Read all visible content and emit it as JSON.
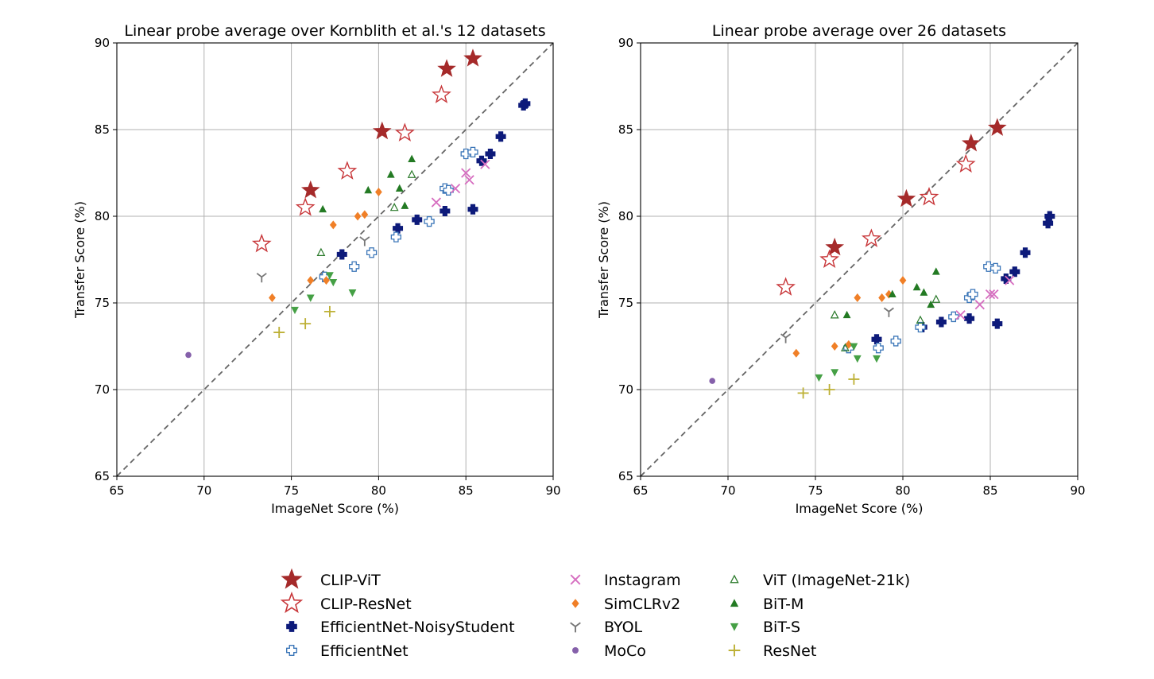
{
  "chart_data": [
    {
      "type": "scatter",
      "title": "Linear probe average over Kornblith et al.'s 12 datasets",
      "xlabel": "ImageNet Score (%)",
      "ylabel": "Transfer Score (%)",
      "xlim": [
        65,
        90
      ],
      "ylim": [
        65,
        90
      ],
      "xticks": [
        65,
        70,
        75,
        80,
        85,
        90
      ],
      "yticks": [
        65,
        70,
        75,
        80,
        85,
        90
      ],
      "grid": true,
      "diagonal": "dashed y=x",
      "series": [
        {
          "name": "CLIP-ViT",
          "marker": "star-filled",
          "color": "#a52a2a",
          "points": [
            [
              76.1,
              81.5
            ],
            [
              80.2,
              84.9
            ],
            [
              83.9,
              88.5
            ],
            [
              85.4,
              89.1
            ]
          ]
        },
        {
          "name": "CLIP-ResNet",
          "marker": "star-open",
          "color": "#c8373a",
          "points": [
            [
              73.3,
              78.4
            ],
            [
              75.8,
              80.5
            ],
            [
              78.2,
              82.6
            ],
            [
              81.5,
              84.8
            ],
            [
              83.6,
              87.0
            ]
          ]
        },
        {
          "name": "EfficientNet-NoisyStudent",
          "marker": "plus-filled",
          "color": "#0d1a7a",
          "points": [
            [
              77.9,
              77.8
            ],
            [
              81.1,
              79.3
            ],
            [
              82.2,
              79.8
            ],
            [
              83.8,
              80.3
            ],
            [
              85.4,
              80.4
            ],
            [
              85.9,
              83.2
            ],
            [
              86.4,
              83.6
            ],
            [
              87.0,
              84.6
            ],
            [
              88.3,
              86.4
            ],
            [
              88.4,
              86.5
            ]
          ]
        },
        {
          "name": "EfficientNet",
          "marker": "plus-open",
          "color": "#3b76b8",
          "points": [
            [
              76.9,
              76.5
            ],
            [
              78.6,
              77.1
            ],
            [
              79.6,
              77.9
            ],
            [
              81.0,
              78.8
            ],
            [
              82.9,
              79.7
            ],
            [
              83.8,
              81.6
            ],
            [
              84.0,
              81.5
            ],
            [
              85.0,
              83.6
            ],
            [
              85.4,
              83.7
            ]
          ]
        },
        {
          "name": "Instagram",
          "marker": "x",
          "color": "#d66ec0",
          "points": [
            [
              83.3,
              80.8
            ],
            [
              84.4,
              81.6
            ],
            [
              85.0,
              82.5
            ],
            [
              85.2,
              82.1
            ],
            [
              86.1,
              83.0
            ]
          ]
        },
        {
          "name": "SimCLRv2",
          "marker": "diamond",
          "color": "#f07f27",
          "points": [
            [
              73.9,
              75.3
            ],
            [
              76.1,
              76.3
            ],
            [
              77.0,
              76.3
            ],
            [
              77.4,
              79.5
            ],
            [
              78.8,
              80.0
            ],
            [
              79.2,
              80.1
            ],
            [
              80.0,
              81.4
            ]
          ]
        },
        {
          "name": "BYOL",
          "marker": "tri-y",
          "color": "#777777",
          "points": [
            [
              73.3,
              76.5
            ],
            [
              79.2,
              78.6
            ]
          ]
        },
        {
          "name": "MoCo",
          "marker": "dot",
          "color": "#8560aa",
          "points": [
            [
              69.1,
              72.0
            ]
          ]
        },
        {
          "name": "ViT (ImageNet-21k)",
          "marker": "triangle-open",
          "color": "#2b7a2b",
          "points": [
            [
              76.7,
              77.9
            ],
            [
              80.9,
              80.5
            ],
            [
              81.9,
              82.4
            ]
          ]
        },
        {
          "name": "BiT-M",
          "marker": "triangle-filled",
          "color": "#237a23",
          "points": [
            [
              76.8,
              80.4
            ],
            [
              79.4,
              81.5
            ],
            [
              80.7,
              82.4
            ],
            [
              81.2,
              81.6
            ],
            [
              81.5,
              80.6
            ],
            [
              81.9,
              83.3
            ]
          ]
        },
        {
          "name": "BiT-S",
          "marker": "triangle-down",
          "color": "#45a045",
          "points": [
            [
              75.2,
              74.6
            ],
            [
              76.1,
              75.3
            ],
            [
              77.2,
              76.6
            ],
            [
              77.4,
              76.2
            ],
            [
              78.5,
              75.6
            ]
          ]
        },
        {
          "name": "ResNet",
          "marker": "plus-thin",
          "color": "#bdb035",
          "points": [
            [
              74.3,
              73.3
            ],
            [
              75.8,
              73.8
            ],
            [
              77.2,
              74.5
            ]
          ]
        }
      ]
    },
    {
      "type": "scatter",
      "title": "Linear probe average over 26 datasets",
      "xlabel": "ImageNet Score (%)",
      "ylabel": "Transfer Score (%)",
      "xlim": [
        65,
        90
      ],
      "ylim": [
        65,
        90
      ],
      "xticks": [
        65,
        70,
        75,
        80,
        85,
        90
      ],
      "yticks": [
        65,
        70,
        75,
        80,
        85,
        90
      ],
      "grid": true,
      "diagonal": "dashed y=x",
      "series": [
        {
          "name": "CLIP-ViT",
          "marker": "star-filled",
          "color": "#a52a2a",
          "points": [
            [
              76.1,
              78.2
            ],
            [
              80.2,
              81.0
            ],
            [
              83.9,
              84.2
            ],
            [
              85.4,
              85.1
            ]
          ]
        },
        {
          "name": "CLIP-ResNet",
          "marker": "star-open",
          "color": "#c8373a",
          "points": [
            [
              73.3,
              75.9
            ],
            [
              75.8,
              77.5
            ],
            [
              78.2,
              78.7
            ],
            [
              81.5,
              81.1
            ],
            [
              83.6,
              83.0
            ]
          ]
        },
        {
          "name": "EfficientNet-NoisyStudent",
          "marker": "plus-filled",
          "color": "#0d1a7a",
          "points": [
            [
              78.5,
              72.9
            ],
            [
              81.1,
              73.6
            ],
            [
              82.2,
              73.9
            ],
            [
              83.8,
              74.1
            ],
            [
              85.4,
              73.8
            ],
            [
              85.9,
              76.4
            ],
            [
              86.4,
              76.8
            ],
            [
              87.0,
              77.9
            ],
            [
              88.3,
              79.6
            ],
            [
              88.4,
              80.0
            ]
          ]
        },
        {
          "name": "EfficientNet",
          "marker": "plus-open",
          "color": "#3b76b8",
          "points": [
            [
              76.9,
              72.4
            ],
            [
              78.6,
              72.4
            ],
            [
              79.6,
              72.8
            ],
            [
              81.0,
              73.6
            ],
            [
              82.9,
              74.2
            ],
            [
              83.8,
              75.3
            ],
            [
              84.0,
              75.5
            ],
            [
              84.9,
              77.1
            ],
            [
              85.3,
              77.0
            ]
          ]
        },
        {
          "name": "Instagram",
          "marker": "x",
          "color": "#d66ec0",
          "points": [
            [
              83.3,
              74.3
            ],
            [
              84.4,
              74.9
            ],
            [
              85.0,
              75.5
            ],
            [
              85.2,
              75.5
            ],
            [
              86.1,
              76.3
            ]
          ]
        },
        {
          "name": "SimCLRv2",
          "marker": "diamond",
          "color": "#f07f27",
          "points": [
            [
              73.9,
              72.1
            ],
            [
              76.1,
              72.5
            ],
            [
              76.9,
              72.6
            ],
            [
              77.4,
              75.3
            ],
            [
              78.8,
              75.3
            ],
            [
              79.2,
              75.5
            ],
            [
              80.0,
              76.3
            ]
          ]
        },
        {
          "name": "BYOL",
          "marker": "tri-y",
          "color": "#777777",
          "points": [
            [
              73.3,
              73.0
            ],
            [
              79.2,
              74.5
            ]
          ]
        },
        {
          "name": "MoCo",
          "marker": "dot",
          "color": "#8560aa",
          "points": [
            [
              69.1,
              70.5
            ]
          ]
        },
        {
          "name": "ViT (ImageNet-21k)",
          "marker": "triangle-open",
          "color": "#2b7a2b",
          "points": [
            [
              76.1,
              74.3
            ],
            [
              76.7,
              72.4
            ],
            [
              81.0,
              74.0
            ],
            [
              81.9,
              75.2
            ]
          ]
        },
        {
          "name": "BiT-M",
          "marker": "triangle-filled",
          "color": "#237a23",
          "points": [
            [
              76.8,
              74.3
            ],
            [
              79.4,
              75.5
            ],
            [
              80.8,
              75.9
            ],
            [
              81.2,
              75.6
            ],
            [
              81.6,
              74.9
            ],
            [
              81.9,
              76.8
            ]
          ]
        },
        {
          "name": "BiT-S",
          "marker": "triangle-down",
          "color": "#45a045",
          "points": [
            [
              75.2,
              70.7
            ],
            [
              76.1,
              71.0
            ],
            [
              77.2,
              72.5
            ],
            [
              77.4,
              71.8
            ],
            [
              78.5,
              71.8
            ]
          ]
        },
        {
          "name": "ResNet",
          "marker": "plus-thin",
          "color": "#bdb035",
          "points": [
            [
              74.3,
              69.8
            ],
            [
              75.8,
              70.0
            ],
            [
              77.2,
              70.6
            ]
          ]
        }
      ]
    }
  ],
  "legend": {
    "placement": "bottom-center",
    "columns": [
      [
        "CLIP-ViT",
        "CLIP-ResNet",
        "EfficientNet-NoisyStudent",
        "EfficientNet"
      ],
      [
        "Instagram",
        "SimCLRv2",
        "BYOL",
        "MoCo"
      ],
      [
        "ViT (ImageNet-21k)",
        "BiT-M",
        "BiT-S",
        "ResNet"
      ]
    ]
  }
}
